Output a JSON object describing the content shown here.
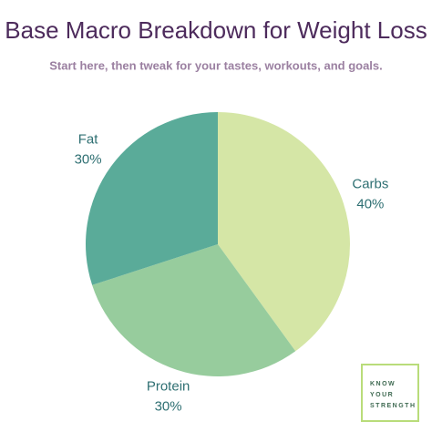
{
  "chart_data": {
    "type": "pie",
    "title": "Base Macro Breakdown for Weight Loss",
    "subtitle": "Start here, then tweak for your tastes, workouts, and goals.",
    "categories": [
      "Carbs",
      "Protein",
      "Fat"
    ],
    "values": [
      40,
      30,
      30
    ],
    "value_labels": [
      "40%",
      "30%",
      "30%"
    ],
    "colors": [
      "#d5e6a6",
      "#97cc9d",
      "#5aab99"
    ]
  },
  "logo": [
    "KNOW",
    "YOUR",
    "STRENGTH"
  ]
}
